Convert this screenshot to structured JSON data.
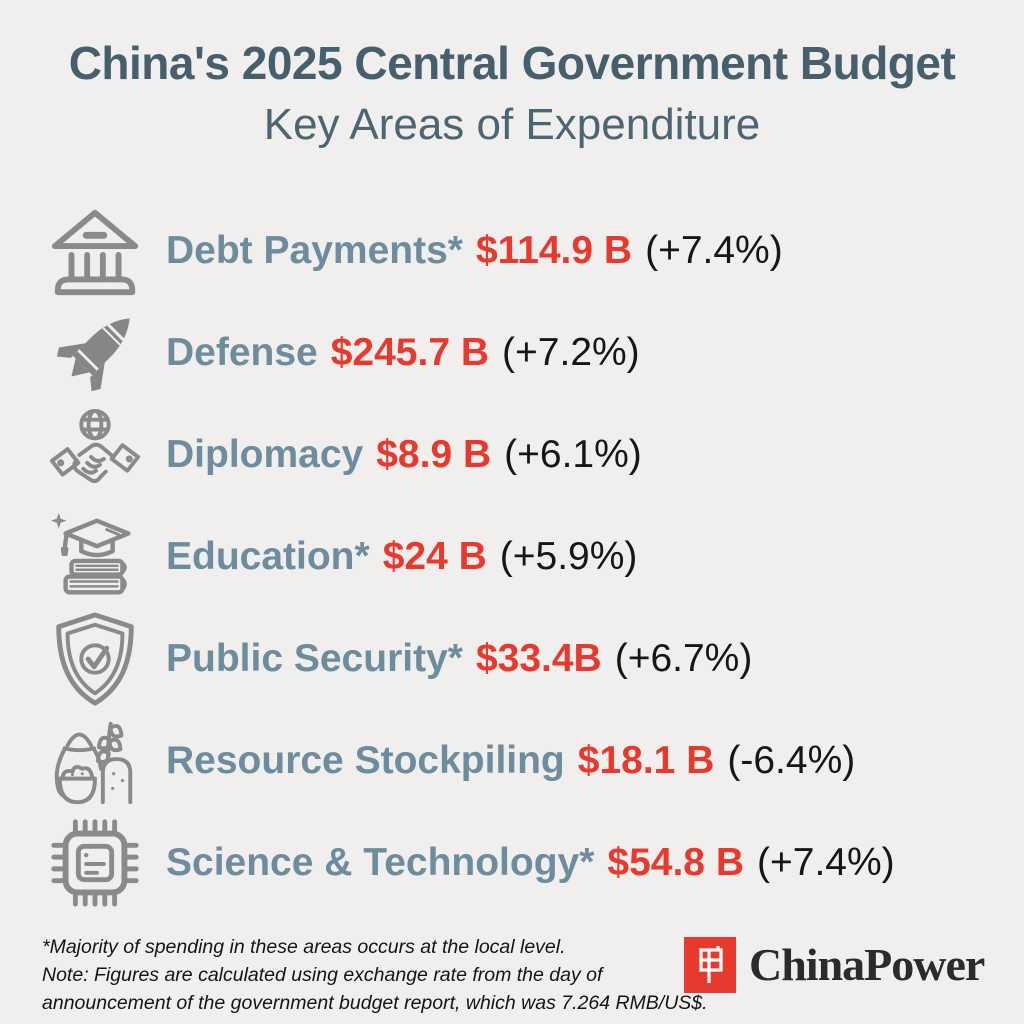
{
  "header": {
    "title": "China's 2025 Central Government Budget",
    "subtitle": "Key Areas of Expenditure"
  },
  "colors": {
    "background": "#f0efed",
    "title": "#455f6d",
    "label": "#6d8c9e",
    "amount_red": "#e8392e",
    "change_black": "#161616",
    "icon_gray": "#8a8a8a",
    "logo_red": "#e8392e"
  },
  "rows": [
    {
      "icon": "bank-icon",
      "label": "Debt Payments*",
      "amount": "$114.9 B",
      "change": "(+7.4%)"
    },
    {
      "icon": "missile-icon",
      "label": "Defense",
      "amount": "$245.7 B",
      "change": "(+7.2%)"
    },
    {
      "icon": "handshake-globe-icon",
      "label": "Diplomacy",
      "amount": "$8.9 B",
      "change": "(+6.1%)"
    },
    {
      "icon": "graduation-books-icon",
      "label": "Education*",
      "amount": "$24 B",
      "change": "(+5.9%)"
    },
    {
      "icon": "shield-check-icon",
      "label": "Public Security*",
      "amount": "$33.4B",
      "change": "(+6.7%)"
    },
    {
      "icon": "food-stockpile-icon",
      "label": "Resource Stockpiling",
      "amount": "$18.1 B",
      "change": "(-6.4%)"
    },
    {
      "icon": "microchip-icon",
      "label": "Science & Technology*",
      "amount": "$54.8 B",
      "change": "(+7.4%)"
    }
  ],
  "footnotes": {
    "line1": "*Majority of spending in these areas occurs at the local level.",
    "line2": "Note: Figures are calculated using exchange rate from the day of",
    "line3": "announcement of the government budget report, which was 7.264 RMB/US$."
  },
  "logo": {
    "text": "ChinaPower"
  },
  "chart_data": {
    "type": "table",
    "title": "China's 2025 Central Government Budget",
    "subtitle": "Key Areas of Expenditure",
    "categories": [
      "Debt Payments",
      "Defense",
      "Diplomacy",
      "Education",
      "Public Security",
      "Resource Stockpiling",
      "Science & Technology"
    ],
    "series": [
      {
        "name": "Expenditure (billion US$)",
        "values": [
          114.9,
          245.7,
          8.9,
          24,
          33.4,
          18.1,
          54.8
        ]
      },
      {
        "name": "Year-over-year change (%)",
        "values": [
          7.4,
          7.2,
          6.1,
          5.9,
          6.7,
          -6.4,
          7.4
        ]
      }
    ],
    "annotations": [
      "* = Majority of spending in these areas occurs at the local level",
      "Exchange rate used: 7.264 RMB/US$"
    ]
  }
}
